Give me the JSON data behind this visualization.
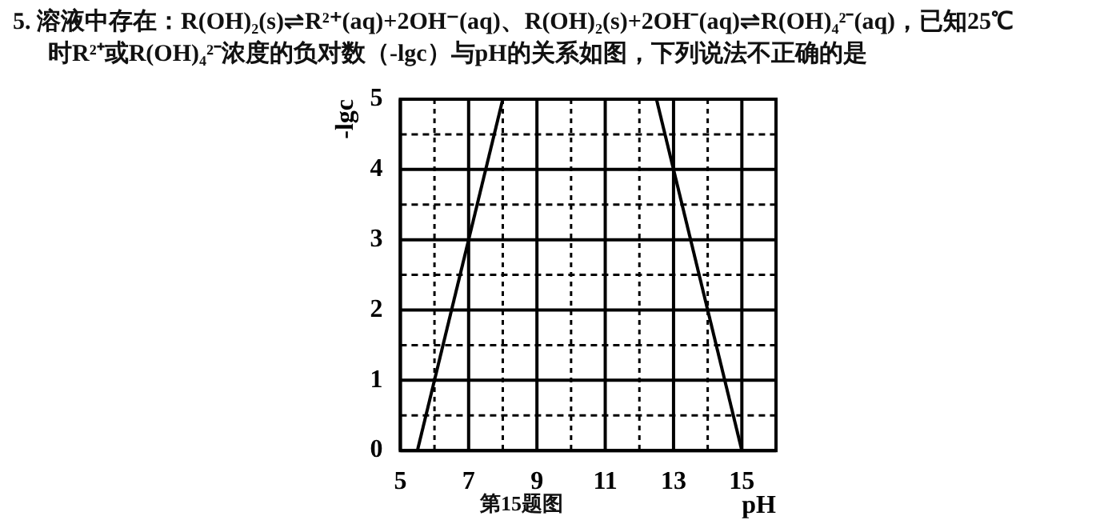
{
  "chart_data": {
    "type": "line",
    "xlabel": "pH",
    "ylabel": "-lgc",
    "annotations": [
      "5. 溶液中存在：R(OH)₂(s)⇌R²⁺(aq)+2OH⁻(aq)、R(OH)₂(s)+2OH⁻(aq)⇌R(OH)₄²⁻(aq)，已知25℃",
      "时R²⁺或R(OH)₄²⁻浓度的负对数（-lgc）与pH的关系如图，下列说法不正确的是",
      "第15题图"
    ],
    "series": [
      {
        "x": [
          5.5,
          8
        ],
        "values": [
          0,
          5
        ],
        "color": "#000000"
      },
      {
        "x": [
          12.5,
          15
        ],
        "values": [
          5,
          0
        ],
        "color": "#000000"
      }
    ],
    "xlim": [
      5,
      16
    ],
    "xticks": [
      5,
      {
        "value": 6,
        "label": null
      },
      7,
      {
        "value": 8,
        "label": null
      },
      9,
      {
        "value": 10,
        "label": null
      },
      11,
      {
        "value": 12,
        "label": null
      },
      13,
      {
        "value": 14,
        "label": null
      },
      15,
      {
        "value": 16,
        "label": null
      }
    ],
    "ylim": [
      0,
      5
    ],
    "yticks": [
      0,
      {
        "value": 0.5,
        "label": null
      },
      1,
      {
        "value": 1.5,
        "label": null
      },
      2,
      {
        "value": 2.5,
        "label": null
      },
      3,
      {
        "value": 3.5,
        "label": null
      },
      4,
      {
        "value": 4.5,
        "label": null
      },
      5
    ],
    "grid": true,
    "marker": "none",
    "line_style": "solid",
    "legend": false
  }
}
